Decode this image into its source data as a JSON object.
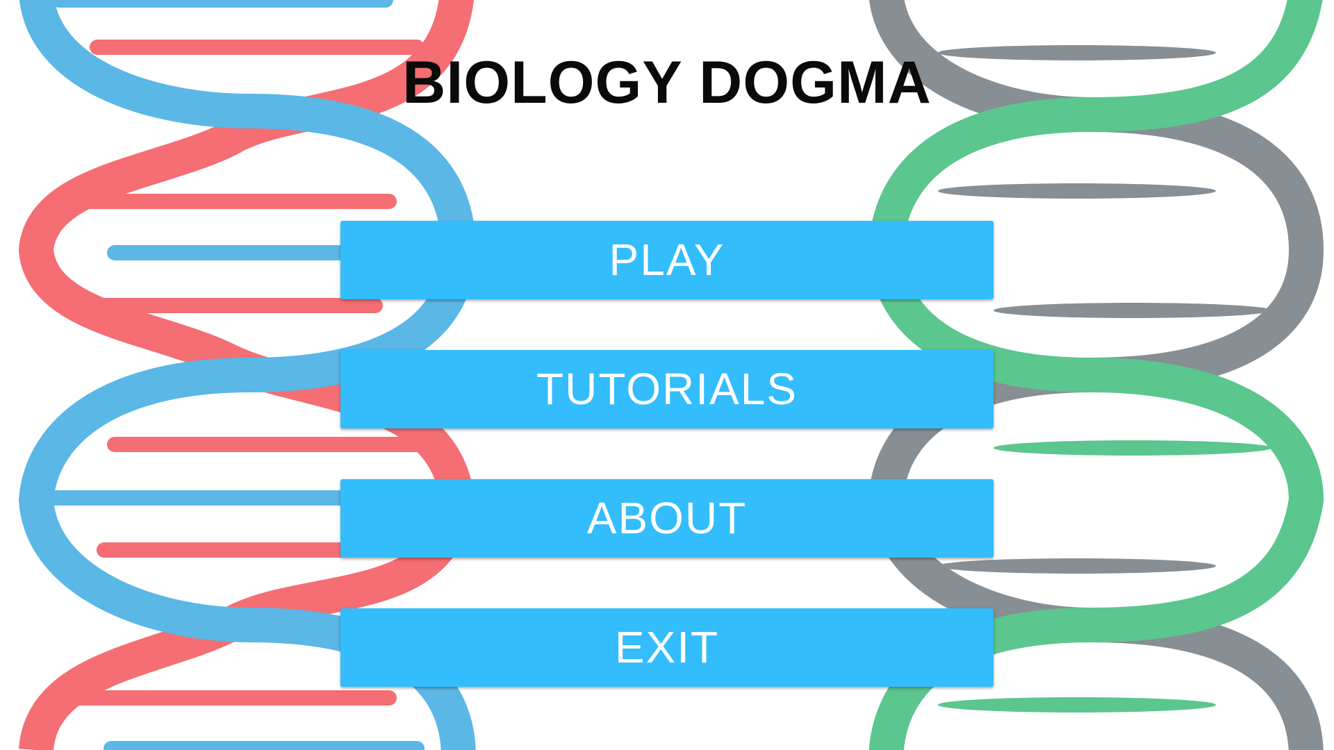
{
  "title": "BIOLOGY DOGMA",
  "menu": {
    "play_label": "PLAY",
    "tutorials_label": "TUTORIALS",
    "about_label": "ABOUT",
    "exit_label": "EXIT"
  },
  "colors": {
    "button": "#33bdfc",
    "button_text": "#ffffff",
    "title": "#0a0a0a",
    "helix_left_strand_a": "#5ab7e6",
    "helix_left_strand_b": "#f46e73",
    "helix_right_strand_a": "#5bc68d",
    "helix_right_strand_b": "#878e94"
  }
}
